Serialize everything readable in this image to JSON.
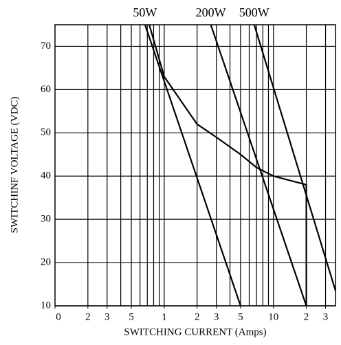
{
  "chart_data": {
    "type": "line",
    "x_label": "SWITCHING CURRENT (Amps)",
    "y_label": "SWITCHINF VOLTAGE (VDC)",
    "xscale": "log",
    "xlim": [
      0.1,
      37
    ],
    "ylim": [
      10,
      75
    ],
    "xticks": [
      {
        "value": 0.1,
        "label": "0"
      },
      {
        "value": 0.2,
        "label": "2"
      },
      {
        "value": 0.3,
        "label": "3"
      },
      {
        "value": 0.5,
        "label": "5"
      },
      1,
      2,
      3,
      5,
      10,
      {
        "value": 20,
        "label": "2"
      },
      {
        "value": 30,
        "label": "3"
      }
    ],
    "xgrid": [
      0.2,
      0.3,
      0.4,
      0.5,
      0.6,
      0.7,
      0.8,
      0.9,
      1,
      2,
      3,
      4,
      5,
      6,
      7,
      8,
      9,
      10,
      20,
      30
    ],
    "yticks": [
      10,
      20,
      30,
      40,
      50,
      60,
      70
    ],
    "grid": true,
    "color": "#000000",
    "series": [
      {
        "name": "50W",
        "x": [
          0.667,
          5
        ],
        "values": [
          75,
          10
        ]
      },
      {
        "name": "200W",
        "x": [
          2.67,
          20
        ],
        "values": [
          75,
          10
        ]
      },
      {
        "name": "500W",
        "x": [
          6.67,
          37
        ],
        "values": [
          75,
          13.5
        ]
      },
      {
        "x": [
          0.73,
          1,
          2,
          3,
          5,
          7,
          10,
          20,
          20
        ],
        "values": [
          75,
          63,
          52,
          49,
          45,
          42,
          40,
          38,
          10
        ]
      }
    ]
  }
}
